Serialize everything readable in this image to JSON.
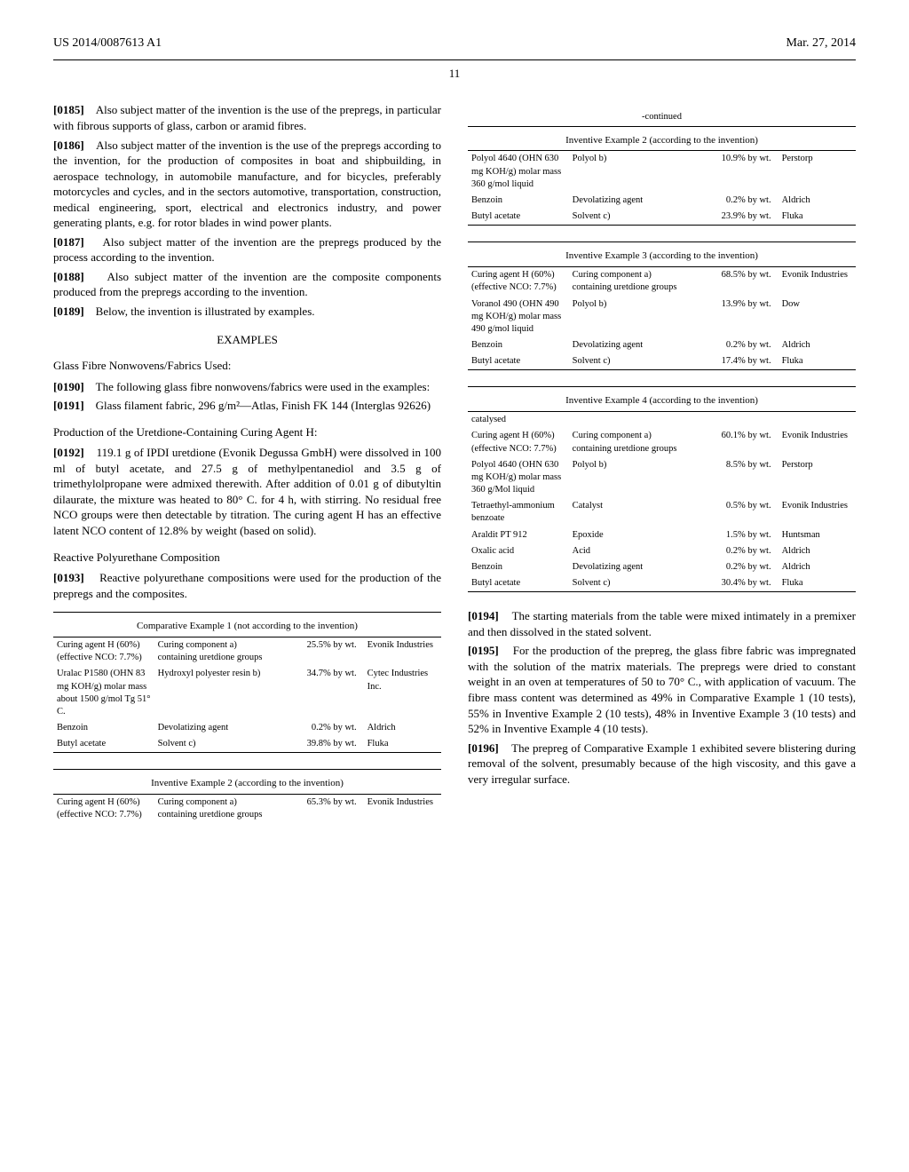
{
  "header": {
    "left": "US 2014/0087613 A1",
    "right": "Mar. 27, 2014",
    "page_num": "11"
  },
  "left_col": {
    "p0185": "Also subject matter of the invention is the use of the prepregs, in particular with fibrous supports of glass, carbon or aramid fibres.",
    "p0186": "Also subject matter of the invention is the use of the prepregs according to the invention, for the production of composites in boat and shipbuilding, in aerospace technology, in automobile manufacture, and for bicycles, preferably motorcycles and cycles, and in the sectors automotive, transportation, construction, medical engineering, sport, electrical and electronics industry, and power generating plants, e.g. for rotor blades in wind power plants.",
    "p0187": "Also subject matter of the invention are the prepregs produced by the process according to the invention.",
    "p0188": "Also subject matter of the invention are the composite components produced from the prepregs according to the invention.",
    "p0189": "Below, the invention is illustrated by examples.",
    "examples_title": "EXAMPLES",
    "glass_title": "Glass Fibre Nonwovens/Fabrics Used:",
    "p0190": "The following glass fibre nonwovens/fabrics were used in the examples:",
    "p0191": "Glass filament fabric, 296 g/m²—Atlas, Finish FK 144 (Interglas 92626)",
    "uret_title": "Production of the Uretdione-Containing Curing Agent H:",
    "p0192": "119.1 g of IPDI uretdione (Evonik Degussa GmbH) were dissolved in 100 ml of butyl acetate, and 27.5 g of methylpentanediol and 3.5 g of trimethylolpropane were admixed therewith. After addition of 0.01 g of dibutyltin dilaurate, the mixture was heated to 80° C. for 4 h, with stirring. No residual free NCO groups were then detectable by titration. The curing agent H has an effective latent NCO content of 12.8% by weight (based on solid).",
    "reactive_title": "Reactive Polyurethane Composition",
    "p0193": "Reactive polyurethane compositions were used for the production of the prepregs and the composites."
  },
  "right_col": {
    "continued": "-continued",
    "p0194": "The starting materials from the table were mixed intimately in a premixer and then dissolved in the stated solvent.",
    "p0195": "For the production of the prepreg, the glass fibre fabric was impregnated with the solution of the matrix materials. The prepregs were dried to constant weight in an oven at temperatures of 50 to 70° C., with application of vacuum. The fibre mass content was determined as 49% in Comparative Example 1 (10 tests), 55% in Inventive Example 2 (10 tests), 48% in Inventive Example 3 (10 tests) and 52% in Inventive Example 4 (10 tests).",
    "p0196": "The prepreg of Comparative Example 1 exhibited severe blistering during removal of the solvent, presumably because of the high viscosity, and this gave a very irregular surface."
  },
  "tables": {
    "ex1": {
      "caption": "Comparative Example 1 (not according to the invention)",
      "rows": [
        [
          "Curing agent H (60%) (effective NCO: 7.7%)",
          "Curing component a) containing uretdione groups",
          "25.5% by wt.",
          "Evonik Industries"
        ],
        [
          "Uralac P1580 (OHN 83 mg KOH/g) molar mass about 1500 g/mol Tg 51° C.",
          "Hydroxyl polyester resin b)",
          "34.7% by wt.",
          "Cytec Industries Inc."
        ],
        [
          "Benzoin",
          "Devolatizing agent",
          "0.2% by wt.",
          "Aldrich"
        ],
        [
          "Butyl acetate",
          "Solvent c)",
          "39.8% by wt.",
          "Fluka"
        ]
      ]
    },
    "ex2a": {
      "caption": "Inventive Example 2 (according to the invention)",
      "rows": [
        [
          "Curing agent H (60%) (effective NCO: 7.7%)",
          "Curing component a) containing uretdione groups",
          "65.3% by wt.",
          "Evonik Industries"
        ]
      ]
    },
    "ex2b": {
      "caption": "Inventive Example 2 (according to the invention)",
      "rows": [
        [
          "Polyol 4640 (OHN 630 mg KOH/g) molar mass 360 g/mol liquid",
          "Polyol b)",
          "10.9% by wt.",
          "Perstorp"
        ],
        [
          "Benzoin",
          "Devolatizing agent",
          "0.2% by wt.",
          "Aldrich"
        ],
        [
          "Butyl acetate",
          "Solvent c)",
          "23.9% by wt.",
          "Fluka"
        ]
      ]
    },
    "ex3": {
      "caption": "Inventive Example 3 (according to the invention)",
      "rows": [
        [
          "Curing agent H (60%) (effective NCO: 7.7%)",
          "Curing component a) containing uretdione groups",
          "68.5% by wt.",
          "Evonik Industries"
        ],
        [
          "Voranol 490 (OHN 490 mg KOH/g) molar mass 490 g/mol liquid",
          "Polyol b)",
          "13.9% by wt.",
          "Dow"
        ],
        [
          "Benzoin",
          "Devolatizing agent",
          "0.2% by wt.",
          "Aldrich"
        ],
        [
          "Butyl acetate",
          "Solvent c)",
          "17.4% by wt.",
          "Fluka"
        ]
      ]
    },
    "ex4": {
      "caption": "Inventive Example 4 (according to the invention)",
      "precaption": "catalysed",
      "rows": [
        [
          "Curing agent H (60%) (effective NCO: 7.7%)",
          "Curing component a) containing uretdione groups",
          "60.1% by wt.",
          "Evonik Industries"
        ],
        [
          "Polyol 4640 (OHN 630 mg KOH/g) molar mass 360 g/Mol liquid",
          "Polyol b)",
          "8.5% by wt.",
          "Perstorp"
        ],
        [
          "Tetraethyl-ammonium benzoate",
          "Catalyst",
          "0.5% by wt.",
          "Evonik Industries"
        ],
        [
          "Araldit PT 912",
          "Epoxide",
          "1.5% by wt.",
          "Huntsman"
        ],
        [
          "Oxalic acid",
          "Acid",
          "0.2% by wt.",
          "Aldrich"
        ],
        [
          "Benzoin",
          "Devolatizing agent",
          "0.2% by wt.",
          "Aldrich"
        ],
        [
          "Butyl acetate",
          "Solvent c)",
          "30.4% by wt.",
          "Fluka"
        ]
      ]
    }
  }
}
